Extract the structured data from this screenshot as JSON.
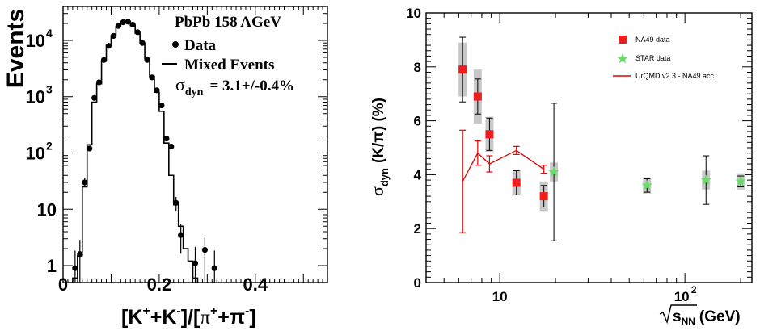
{
  "chart_data": [
    {
      "type": "histogram",
      "legend_placement": "top-right",
      "ylabel": "Events",
      "y_scale": "log",
      "xlim": [
        0,
        0.55
      ],
      "ylim": [
        0.5,
        40000
      ],
      "x_ticks": [
        "0",
        "0.2",
        "0.4"
      ],
      "y_ticks": [
        "1",
        "10",
        "10",
        "10",
        "10"
      ],
      "y_tick_exponents": [
        "",
        "",
        "2",
        "3",
        "4"
      ],
      "xlabel_parts": {
        "b1": "[K",
        "s1": "+",
        "b2": "+K",
        "s2": "-",
        "b3": "]/[",
        "b4": "π",
        "s3": "+",
        "b5": "+π",
        "s4": "-",
        "b6": "]"
      },
      "annotation": "PbPb 158 AGeV",
      "legend": {
        "data": "Data",
        "mixed": "Mixed Events"
      },
      "sigma_label": {
        "symbol": "σ",
        "sub": "dyn",
        "value": "= 3.1+/-0.4%"
      },
      "series": [
        {
          "name": "Data",
          "x": [
            0.025,
            0.035,
            0.045,
            0.055,
            0.065,
            0.075,
            0.085,
            0.095,
            0.105,
            0.115,
            0.125,
            0.135,
            0.145,
            0.155,
            0.165,
            0.175,
            0.185,
            0.195,
            0.205,
            0.215,
            0.225,
            0.235,
            0.245,
            0.275,
            0.295,
            0.315
          ],
          "y": [
            0.9,
            1.6,
            30,
            120,
            950,
            1800,
            4500,
            8000,
            12000,
            18000,
            21000,
            21500,
            19000,
            14000,
            9000,
            4500,
            2200,
            1300,
            700,
            180,
            130,
            13,
            3.5,
            1.1,
            1.9,
            0.9
          ]
        },
        {
          "name": "Mixed Events",
          "bin_edges": [
            0.02,
            0.03,
            0.04,
            0.05,
            0.06,
            0.07,
            0.08,
            0.09,
            0.1,
            0.11,
            0.12,
            0.13,
            0.14,
            0.15,
            0.16,
            0.17,
            0.18,
            0.19,
            0.2,
            0.21,
            0.22,
            0.23,
            0.24,
            0.25,
            0.26,
            0.27,
            0.28
          ],
          "y": [
            0.6,
            1.5,
            25,
            140,
            800,
            1700,
            4300,
            8200,
            12000,
            17500,
            21000,
            21500,
            18500,
            13500,
            8800,
            4800,
            2300,
            1200,
            550,
            150,
            40,
            12,
            5,
            2,
            1.2,
            0.6
          ]
        }
      ]
    },
    {
      "type": "scatter",
      "ylabel_parts": {
        "sigma": "σ",
        "sub": "dyn",
        "rest": "(K/π) (%)"
      },
      "xlabel_parts": {
        "sqrt_s": "s",
        "sub": "NN",
        "unit": "(GeV)"
      },
      "x_scale": "log",
      "xlim": [
        4,
        230
      ],
      "ylim": [
        0,
        10
      ],
      "y_ticks": [
        "0",
        "2",
        "4",
        "6",
        "8",
        "10"
      ],
      "x_ticks": [
        "10",
        "10"
      ],
      "x_tick_exponents": [
        "",
        "2"
      ],
      "legend_placement": "top-right",
      "legend": {
        "na49": "NA49 data",
        "star": "STAR data",
        "urqmd": "UrQMD v2.3 - NA49 acc."
      },
      "series": [
        {
          "name": "NA49 data",
          "color": "#ee1c1c",
          "x": [
            6.3,
            7.6,
            8.8,
            12.3,
            17.3
          ],
          "y": [
            7.9,
            6.9,
            5.5,
            3.7,
            3.2
          ],
          "stat_err": [
            1.2,
            0.65,
            0.6,
            0.45,
            0.4
          ],
          "sys_err": [
            1.0,
            1.0,
            0.65,
            0.45,
            0.55
          ]
        },
        {
          "name": "STAR data",
          "color": "#66dd66",
          "x": [
            19.6,
            62.4,
            130,
            200
          ],
          "y": [
            4.1,
            3.6,
            3.8,
            3.75
          ],
          "stat_err": [
            2.55,
            0.25,
            0.9,
            0.2
          ],
          "sys_err": [
            0.35,
            0.3,
            0.35,
            0.3
          ]
        },
        {
          "name": "UrQMD v2.3 - NA49 acc.",
          "color": "#dd0000",
          "x": [
            6.3,
            7.6,
            8.8,
            12.3,
            17.3
          ],
          "y": [
            3.75,
            4.8,
            4.4,
            4.9,
            4.2
          ],
          "err": [
            1.9,
            0.45,
            0.3,
            0.15,
            0.15
          ]
        }
      ]
    }
  ]
}
